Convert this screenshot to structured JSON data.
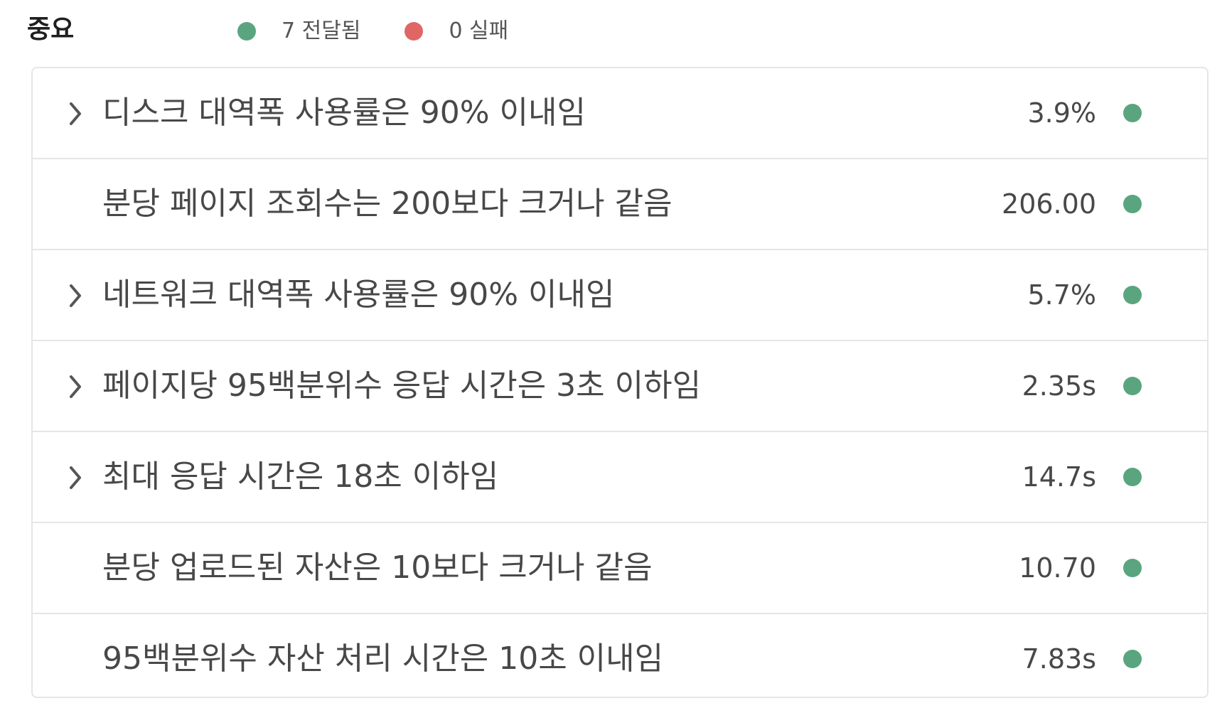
{
  "header": {
    "title": "중요",
    "legend": [
      {
        "label": "7 전달됨",
        "color": "#5aa57f",
        "icon": "success-dot-icon"
      },
      {
        "label": "0 실패",
        "color": "#e06666",
        "icon": "failure-dot-icon"
      }
    ]
  },
  "colors": {
    "success": "#5aa57f",
    "failure": "#e06666",
    "chevron": "#555555"
  },
  "rows": [
    {
      "label": "디스크 대역폭 사용률은 90% 이내임",
      "value": "3.9%",
      "expandable": true,
      "status": "success"
    },
    {
      "label": "분당 페이지 조회수는 200보다 크거나 같음",
      "value": "206.00",
      "expandable": false,
      "status": "success"
    },
    {
      "label": "네트워크 대역폭 사용률은 90% 이내임",
      "value": "5.7%",
      "expandable": true,
      "status": "success"
    },
    {
      "label": "페이지당 95백분위수 응답 시간은 3초 이하임",
      "value": "2.35s",
      "expandable": true,
      "status": "success"
    },
    {
      "label": "최대 응답 시간은 18초 이하임",
      "value": "14.7s",
      "expandable": true,
      "status": "success"
    },
    {
      "label": "분당 업로드된 자산은 10보다 크거나 같음",
      "value": "10.70",
      "expandable": false,
      "status": "success"
    },
    {
      "label": "95백분위수 자산 처리 시간은 10초 이내임",
      "value": "7.83s",
      "expandable": false,
      "status": "success"
    }
  ]
}
